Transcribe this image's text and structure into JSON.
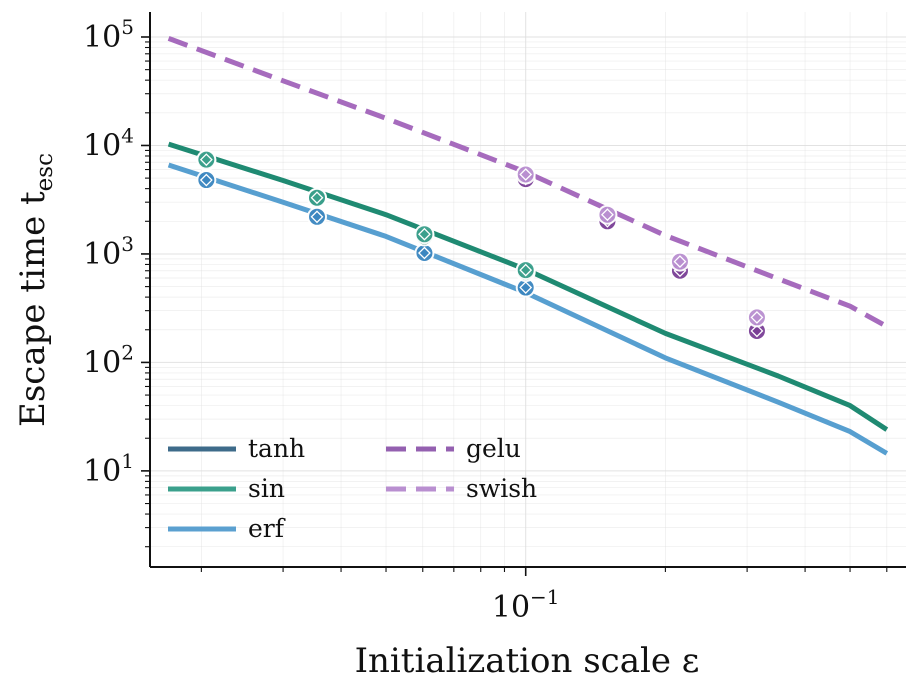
{
  "chart_data": {
    "type": "line",
    "xlabel": "Initialization scale ε",
    "ylabel": "Escape time t",
    "ylabel_subscript": "esc",
    "xscale": "log",
    "yscale": "log",
    "xlim": [
      0.0155,
      0.66
    ],
    "ylim": [
      1.3,
      170000
    ],
    "x_ticks": [
      {
        "value": 0.1,
        "base": "10",
        "exp": "−1"
      }
    ],
    "y_ticks": [
      {
        "value": 10,
        "base": "10",
        "exp": "1"
      },
      {
        "value": 100,
        "base": "10",
        "exp": "2"
      },
      {
        "value": 1000,
        "base": "10",
        "exp": "3"
      },
      {
        "value": 10000,
        "base": "10",
        "exp": "4"
      },
      {
        "value": 100000,
        "base": "10",
        "exp": "5"
      }
    ],
    "grid": true,
    "legend": {
      "position": "lower-left",
      "columns": 2
    },
    "series": [
      {
        "name": "tanh",
        "color": "#3e6b8a",
        "style": "solid",
        "x": [
          0.017,
          0.03,
          0.05,
          0.1,
          0.2,
          0.35,
          0.5,
          0.6
        ],
        "y": [
          10200,
          4700,
          2250,
          700,
          180,
          72,
          38,
          23
        ],
        "points": {
          "x": [
            0.0205,
            0.0355,
            0.0605,
            0.1
          ],
          "y": [
            7200,
            3250,
            1450,
            680
          ],
          "fill": "#1b7a5e"
        }
      },
      {
        "name": "sin",
        "color": "#3ba08c",
        "style": "solid",
        "x": [
          0.017,
          0.03,
          0.05,
          0.1,
          0.2,
          0.35,
          0.5,
          0.6
        ],
        "y": [
          10300,
          4750,
          2300,
          720,
          185,
          75,
          40,
          24
        ],
        "points": {
          "x": [
            0.0205,
            0.0355,
            0.0605,
            0.1
          ],
          "y": [
            7400,
            3300,
            1520,
            710
          ],
          "fill": "#3ba08c"
        }
      },
      {
        "name": "erf",
        "color": "#5ba0d0",
        "style": "solid",
        "x": [
          0.017,
          0.03,
          0.05,
          0.1,
          0.2,
          0.35,
          0.5,
          0.6
        ],
        "y": [
          6600,
          3000,
          1450,
          440,
          110,
          43,
          23,
          14.5
        ],
        "points": {
          "x": [
            0.0205,
            0.0355,
            0.0605,
            0.1
          ],
          "y": [
            4800,
            2200,
            1020,
            490
          ],
          "fill": "#3b86c0"
        }
      },
      {
        "name": "gelu",
        "color": "#9460b0",
        "style": "dashed",
        "x": [
          0.017,
          0.03,
          0.05,
          0.1,
          0.2,
          0.35,
          0.5,
          0.6
        ],
        "y": [
          98000,
          40000,
          18000,
          5800,
          1500,
          600,
          340,
          220
        ],
        "points": {
          "x": [
            0.1,
            0.15,
            0.215,
            0.315
          ],
          "y": [
            4900,
            2000,
            700,
            195
          ],
          "fill": "#7a3f96"
        }
      },
      {
        "name": "swish",
        "color": "#b98fd0",
        "style": "dashed",
        "x": [
          0.017,
          0.03,
          0.05,
          0.1,
          0.2,
          0.35,
          0.5,
          0.6
        ],
        "y": [
          97000,
          39500,
          17800,
          5700,
          1480,
          590,
          330,
          215
        ],
        "points": {
          "x": [
            0.1,
            0.15,
            0.215,
            0.315
          ],
          "y": [
            5400,
            2300,
            850,
            260
          ],
          "fill": "#b98fd0"
        }
      }
    ],
    "drawn_lines": [
      {
        "series": "swish",
        "color": "#a66bbd",
        "style": "dashed"
      },
      {
        "series": "sin",
        "color": "#1f8a72",
        "style": "solid"
      },
      {
        "series": "erf",
        "color": "#579fd0",
        "style": "solid"
      }
    ],
    "marker_order": [
      "erf",
      "tanh",
      "sin",
      "gelu",
      "swish"
    ]
  }
}
